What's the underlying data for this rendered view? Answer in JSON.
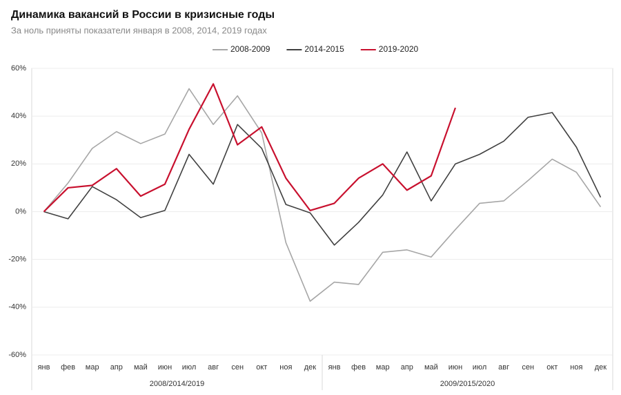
{
  "chart_data": {
    "type": "line",
    "title": "Динамика вакансий в России в кризисные годы",
    "subtitle": "За ноль приняты показатели января в 2008, 2014, 2019 годах",
    "categories": [
      "янв",
      "фев",
      "мар",
      "апр",
      "май",
      "июн",
      "июл",
      "авг",
      "сен",
      "окт",
      "ноя",
      "дек",
      "янв",
      "фев",
      "мар",
      "апр",
      "май",
      "июн",
      "июл",
      "авг",
      "сен",
      "окт",
      "ноя",
      "дек"
    ],
    "groups": [
      "2008/2014/2019",
      "2009/2015/2020"
    ],
    "series": [
      {
        "name": "2008-2009",
        "color": "#a6a6a6",
        "values": [
          0,
          12,
          26.5,
          33.5,
          28.5,
          32.5,
          51.5,
          36.5,
          48.5,
          33,
          -13,
          -37.5,
          -29.5,
          -30.5,
          -17,
          -16,
          -19,
          -7.5,
          3.5,
          4.5,
          13,
          22,
          16.5,
          2
        ]
      },
      {
        "name": "2014-2015",
        "color": "#404040",
        "values": [
          0,
          -3,
          10.5,
          5,
          -2.5,
          0.5,
          24,
          11.5,
          36.5,
          26.5,
          3,
          -0.5,
          -14,
          -4.5,
          7,
          25,
          4.5,
          20,
          24,
          29.5,
          39.5,
          41.5,
          27,
          6
        ]
      },
      {
        "name": "2019-2020",
        "color": "#c8102e",
        "values": [
          0,
          10,
          11,
          18,
          6.5,
          11.5,
          34.5,
          53.5,
          28,
          35.5,
          14,
          0.5,
          3.5,
          14,
          20,
          9,
          15,
          43.5,
          null,
          null,
          null,
          null,
          null,
          null
        ]
      }
    ],
    "ylim": [
      -60,
      60
    ],
    "yticks": [
      {
        "value": -60,
        "label": "-60%"
      },
      {
        "value": -40,
        "label": "-40%"
      },
      {
        "value": -20,
        "label": "-20%"
      },
      {
        "value": 0,
        "label": "0%"
      },
      {
        "value": 20,
        "label": "20%"
      },
      {
        "value": 40,
        "label": "40%"
      },
      {
        "value": 60,
        "label": "60%"
      }
    ],
    "grid": true
  }
}
